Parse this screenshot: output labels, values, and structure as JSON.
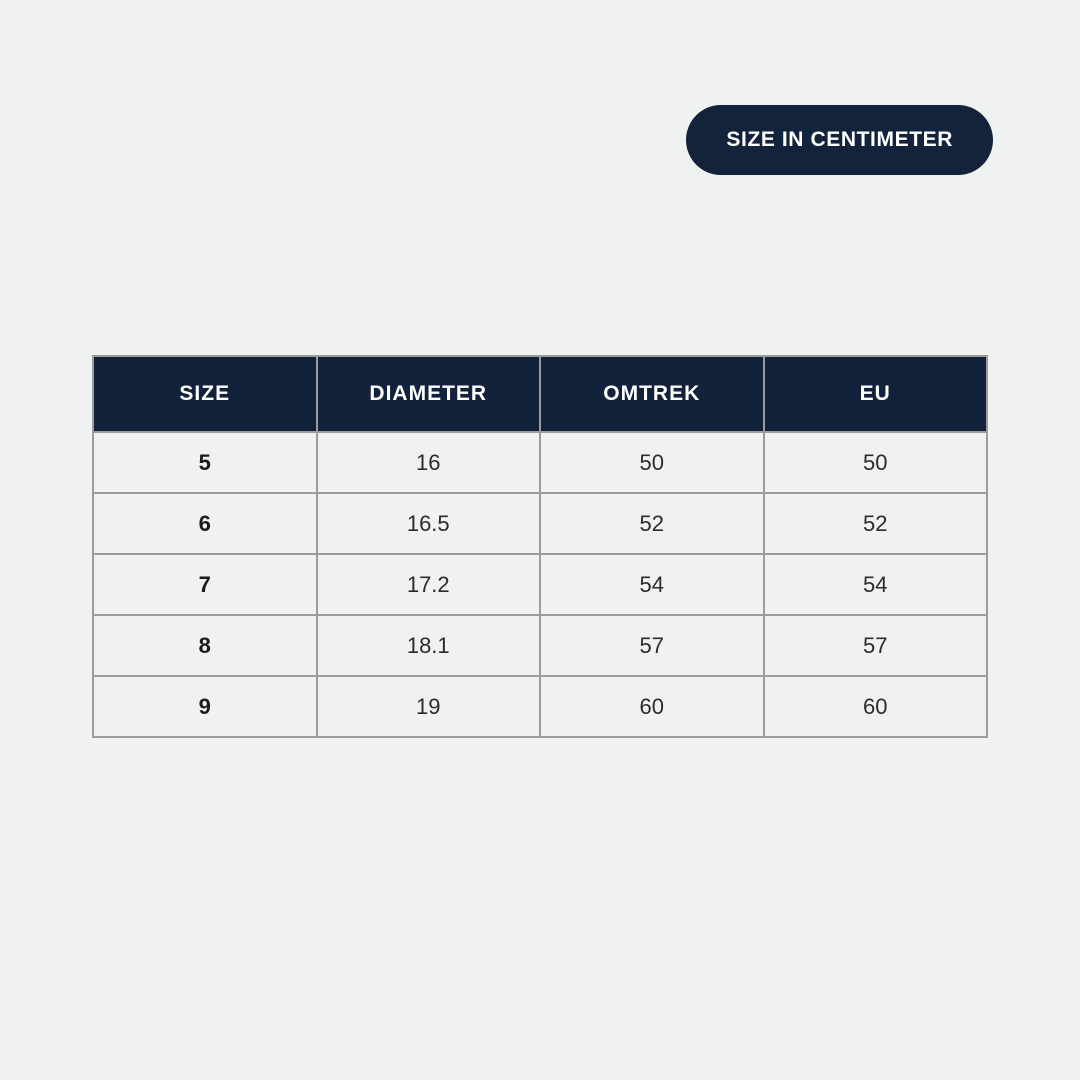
{
  "badge": {
    "label": "SIZE IN CENTIMETER"
  },
  "table": {
    "columns": [
      "SIZE",
      "DIAMETER",
      "OMTREK",
      "EU"
    ],
    "rows": [
      [
        "5",
        "16",
        "50",
        "50"
      ],
      [
        "6",
        "16.5",
        "52",
        "52"
      ],
      [
        "7",
        "17.2",
        "54",
        "54"
      ],
      [
        "8",
        "18.1",
        "57",
        "57"
      ],
      [
        "9",
        "19",
        "60",
        "60"
      ]
    ]
  },
  "colors": {
    "accent_navy": "#13233c",
    "page_background": "#f0f1f1",
    "cell_background": "#f1f1f1",
    "table_border": "#9c9c9c",
    "header_text": "#ffffff",
    "body_text": "#2b2b2b"
  },
  "chart_data": {
    "type": "table",
    "title": "SIZE IN CENTIMETER",
    "columns": [
      "SIZE",
      "DIAMETER",
      "OMTREK",
      "EU"
    ],
    "rows": [
      {
        "size": 5,
        "diameter": 16,
        "omtrek": 50,
        "eu": 50
      },
      {
        "size": 6,
        "diameter": 16.5,
        "omtrek": 52,
        "eu": 52
      },
      {
        "size": 7,
        "diameter": 17.2,
        "omtrek": 54,
        "eu": 54
      },
      {
        "size": 8,
        "diameter": 18.1,
        "omtrek": 57,
        "eu": 57
      },
      {
        "size": 9,
        "diameter": 19,
        "omtrek": 60,
        "eu": 60
      }
    ],
    "units": "centimeter",
    "layout": "header row navy, body rows light gray, all cells center-aligned"
  }
}
